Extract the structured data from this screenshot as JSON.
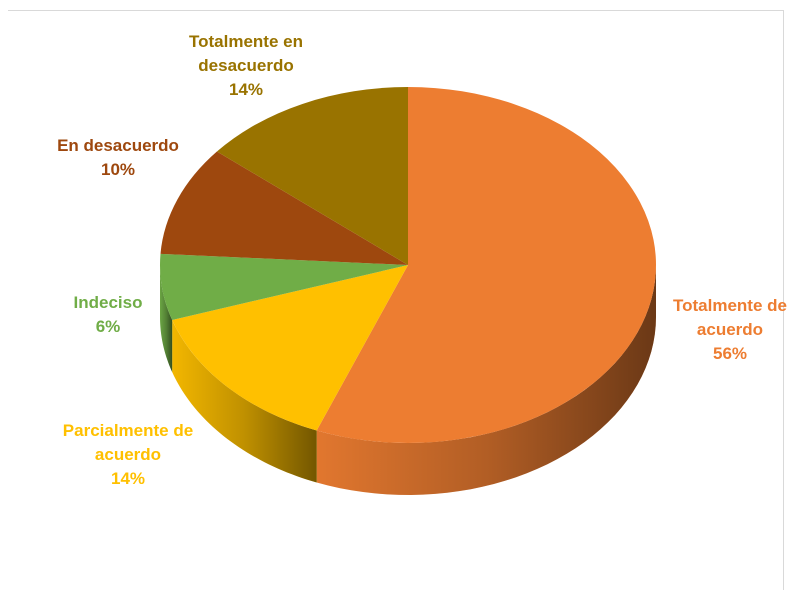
{
  "chart_data": {
    "type": "pie",
    "style": "3d",
    "categories": [
      "Totalmente de acuerdo",
      "Parcialmente de acuerdo",
      "Indeciso",
      "En desacuerdo",
      "Totalmente en desacuerdo"
    ],
    "values": [
      56,
      14,
      6,
      10,
      14
    ],
    "value_labels": [
      "56%",
      "14%",
      "6%",
      "10%",
      "14%"
    ],
    "colors": [
      "#ED7D31",
      "#FFC000",
      "#70AD47",
      "#9E480E",
      "#997300"
    ]
  }
}
